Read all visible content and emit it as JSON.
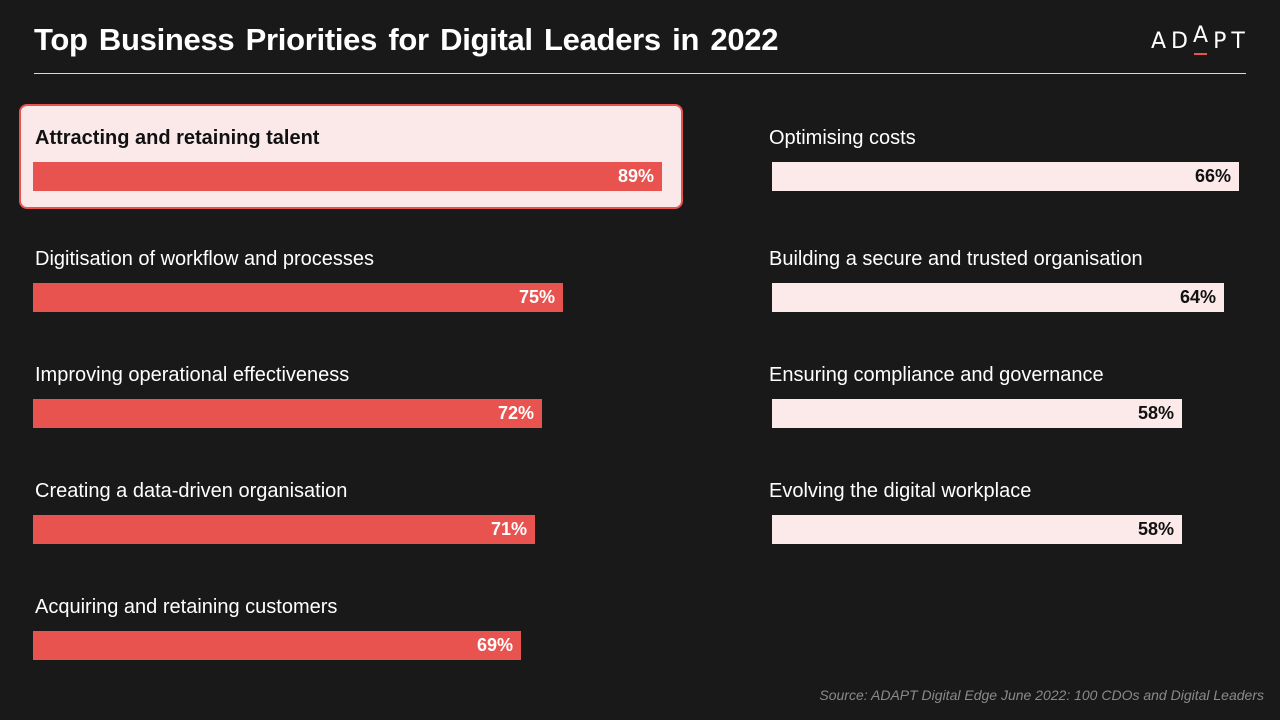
{
  "title": "Top Business Priorities for Digital Leaders in 2022",
  "logo": {
    "text_before": "AD",
    "text_mark": "A",
    "text_after": "PT"
  },
  "source": "Source: ADAPT Digital Edge June 2022: 100 CDOs and Digital Leaders",
  "colors": {
    "accent": "#e8534f",
    "light_bar": "#fce9e9",
    "background": "#191919"
  },
  "chart_data": {
    "type": "bar",
    "orientation": "horizontal",
    "title": "Top Business Priorities for Digital Leaders in 2022",
    "unit": "%",
    "xlim": [
      0,
      100
    ],
    "highlighted": "Attracting and retaining talent",
    "categories": [
      "Attracting and retaining talent",
      "Digitisation of workflow and processes",
      "Improving operational effectiveness",
      "Creating a data-driven organisation",
      "Acquiring and retaining customers",
      "Optimising costs",
      "Building a secure and trusted organisation",
      "Ensuring compliance and governance",
      "Evolving the digital workplace"
    ],
    "values": [
      89,
      75,
      72,
      71,
      69,
      66,
      64,
      58,
      58
    ],
    "value_labels": [
      "89%",
      "75%",
      "72%",
      "71%",
      "69%",
      "66%",
      "64%",
      "58%",
      "58%"
    ]
  }
}
